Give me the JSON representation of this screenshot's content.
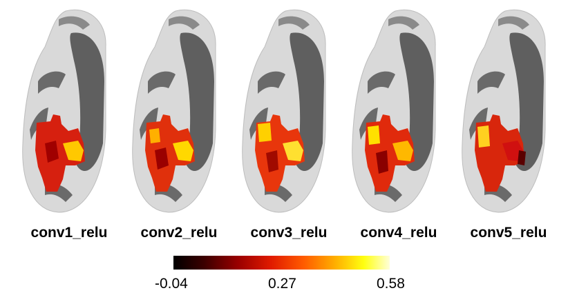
{
  "panels": [
    {
      "label": "conv1_relu"
    },
    {
      "label": "conv2_relu"
    },
    {
      "label": "conv3_relu"
    },
    {
      "label": "conv4_relu"
    },
    {
      "label": "conv5_relu"
    }
  ],
  "colorbar": {
    "ticks": [
      "-0.04",
      "0.27",
      "0.58"
    ],
    "colors": [
      "#000000",
      "#9a0000",
      "#e01a00",
      "#ffb000",
      "#ffff10",
      "#ffffd8"
    ]
  }
}
